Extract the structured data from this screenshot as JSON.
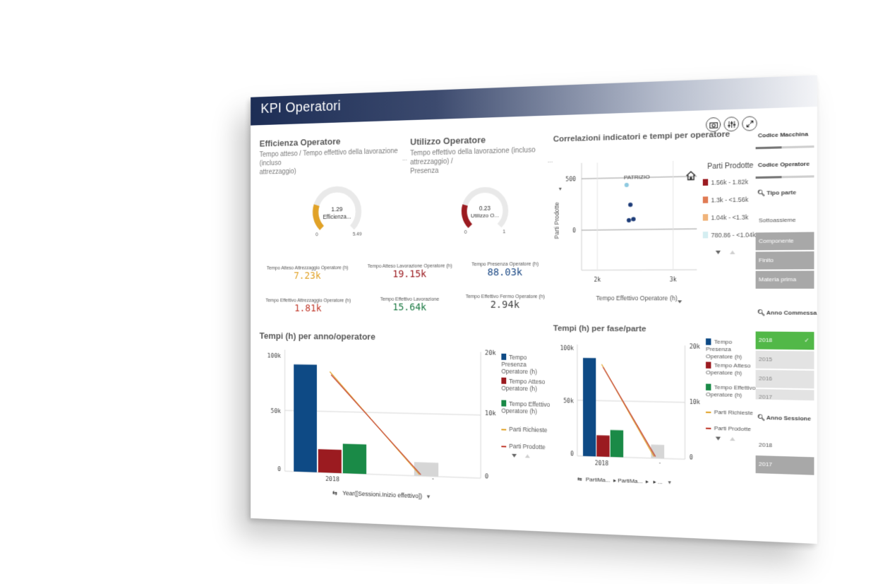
{
  "app": {
    "title": "KPI Operatori"
  },
  "toolbar": {
    "snapshot_icon": "camera-icon",
    "selections_icon": "sliders-icon",
    "fullscreen_icon": "expand-icon"
  },
  "efficienza": {
    "title": "Efficienza Operatore",
    "subtitle_line1": "Tempo atteso / Tempo effettivo della lavorazione (incluso",
    "subtitle_line2": "attrezzaggio)",
    "gauge": {
      "value_label": "1.29",
      "measure_label": "Efficienza...",
      "min_label": "0",
      "max_label": "5.49",
      "value": 1.29,
      "min": 0,
      "max": 5.49,
      "color": "#e1a227"
    }
  },
  "utilizzo": {
    "title": "Utilizzo Operatore",
    "subtitle_line1": "Tempo effettivo della lavorazione (incluso attrezzaggio) /",
    "subtitle_line2": "Presenza",
    "ellipsis": "...",
    "gauge": {
      "value_label": "0.23",
      "measure_label": "Utilizzo O...",
      "min_label": "0",
      "max_label": "1",
      "value": 0.23,
      "min": 0,
      "max": 1,
      "color": "#9b1b20"
    }
  },
  "kpis": [
    {
      "label": "Tempo Atteso Attrezzaggio Operatore (h)",
      "value": "7.23k",
      "color": "#e1a227"
    },
    {
      "label": "Tempo Atteso Lavorazione Operatore (h)",
      "value": "19.15k",
      "color": "#9b1b20"
    },
    {
      "label": "Tempo Presenza Operatore (h)",
      "value": "88.03k",
      "color": "#1d4a86"
    },
    {
      "label": "Tempo Effettivo Attrezzaggio Operatore (h)",
      "value": "1.81k",
      "color": "#c0392b"
    },
    {
      "label": "Tempo Effettivo Lavorazione",
      "value": "15.64k",
      "color": "#1e7b45"
    },
    {
      "label": "Tempo Effettivo Fermo Operatore (h)",
      "value": "2.94k",
      "color": "#444444"
    }
  ],
  "scatter": {
    "title": "Correlazioni indicatori e tempi per operatore",
    "ylabel": "Parti Prodotte",
    "xlabel": "Tempo Effettivo Operatore (h)",
    "point_label": "PATRIZIO",
    "home_icon": "home-icon",
    "y_ticks": [
      "500",
      "0"
    ],
    "x_ticks": [
      "2k",
      "3k"
    ],
    "legend_title": "Parti Prodotte",
    "legend": [
      {
        "label": "1.56k - 1.82k",
        "color": "#9b1b20"
      },
      {
        "label": "1.3k - <1.56k",
        "color": "#e07b54"
      },
      {
        "label": "1.04k - <1.3k",
        "color": "#f0b37a"
      },
      {
        "label": "780.86 - <1.04k",
        "color": "#d4eef1"
      }
    ]
  },
  "chart_anno": {
    "title": "Tempi (h) per anno/operatore",
    "y_left_ticks": [
      "100k",
      "50k",
      "0"
    ],
    "y_right_ticks": [
      "20k",
      "10k",
      "0"
    ],
    "x_ticks": [
      "2018",
      "-"
    ],
    "dimension_label": "Year([Sessioni.Inizio effettivo])",
    "legend": [
      {
        "label": "Tempo Presenza Operatore (h)",
        "color": "#0e4a85",
        "kind": "bar"
      },
      {
        "label": "Tempo Atteso Operatore (h)",
        "color": "#9b1b20",
        "kind": "bar"
      },
      {
        "label": "Tempo Effettivo Operatore (h)",
        "color": "#1a8a47",
        "kind": "bar"
      },
      {
        "label": "Parti Richieste",
        "color": "#e1a227",
        "kind": "line"
      },
      {
        "label": "Parti Prodotte",
        "color": "#c0392b",
        "kind": "line"
      }
    ]
  },
  "chart_fase": {
    "title": "Tempi (h) per fase/parte",
    "y_left_ticks": [
      "100k",
      "50k",
      "0"
    ],
    "y_right_ticks": [
      "20k",
      "10k",
      "0"
    ],
    "x_ticks": [
      "2018",
      "-"
    ],
    "breadcrumb": [
      "PartiMa...",
      "PartiMa...",
      "",
      "..."
    ],
    "legend": [
      {
        "label": "Tempo Presenza Operatore (h)",
        "color": "#0e4a85",
        "kind": "bar"
      },
      {
        "label": "Tempo Atteso Operatore (h)",
        "color": "#9b1b20",
        "kind": "bar"
      },
      {
        "label": "Tempo Effettivo Operatore (h)",
        "color": "#1a8a47",
        "kind": "bar"
      },
      {
        "label": "Parti Richieste",
        "color": "#e1a227",
        "kind": "line"
      },
      {
        "label": "Parti Prodotte",
        "color": "#c0392b",
        "kind": "line"
      }
    ]
  },
  "filters": {
    "codice_macchina": "Codice Macchina",
    "codice_operatore": "Codice Operatore",
    "tipo_parte": {
      "title": "Tipo parte",
      "items": [
        "Sottoassieme",
        "Componente",
        "Finito",
        "Materia prima"
      ]
    },
    "anno_commessa": {
      "title": "Anno Commessa",
      "items": [
        "2018",
        "2015",
        "2016",
        "2017"
      ],
      "check": "✓"
    },
    "anno_sessione": {
      "title": "Anno Sessione",
      "items": [
        "2018",
        "2017"
      ]
    }
  },
  "chart_data": [
    {
      "type": "bar",
      "title": "Tempi (h) per anno/operatore",
      "categories": [
        "2018",
        "-"
      ],
      "ylim": [
        0,
        100000
      ],
      "y2lim": [
        0,
        20000
      ],
      "series": [
        {
          "name": "Tempo Presenza Operatore (h)",
          "values": [
            88000,
            null
          ]
        },
        {
          "name": "Tempo Atteso Operatore (h)",
          "values": [
            19000,
            null
          ]
        },
        {
          "name": "Tempo Effettivo Operatore (h)",
          "values": [
            24000,
            11000
          ]
        },
        {
          "name": "Parti Richieste",
          "values": [
            16500,
            200
          ],
          "axis": "right"
        },
        {
          "name": "Parti Prodotte",
          "values": [
            16000,
            200
          ],
          "axis": "right"
        }
      ]
    },
    {
      "type": "bar",
      "title": "Tempi (h) per fase/parte",
      "categories": [
        "2018",
        "-"
      ],
      "ylim": [
        0,
        100000
      ],
      "y2lim": [
        0,
        20000
      ],
      "series": [
        {
          "name": "Tempo Presenza Operatore (h)",
          "values": [
            88000,
            null
          ]
        },
        {
          "name": "Tempo Atteso Operatore (h)",
          "values": [
            19000,
            null
          ]
        },
        {
          "name": "Tempo Effettivo Operatore (h)",
          "values": [
            24000,
            12000
          ]
        },
        {
          "name": "Parti Richieste",
          "values": [
            16500,
            300
          ],
          "axis": "right"
        },
        {
          "name": "Parti Prodotte",
          "values": [
            16000,
            300
          ],
          "axis": "right"
        }
      ]
    },
    {
      "type": "scatter",
      "title": "Correlazioni indicatori e tempi per operatore",
      "xlabel": "Tempo Effettivo Operatore (h)",
      "ylabel": "Parti Prodotte",
      "xlim": [
        1800,
        3100
      ],
      "ylim": [
        -200,
        600
      ],
      "points": [
        {
          "x": 2390,
          "y": 430,
          "label": "PATRIZIO",
          "color": "#8ec9e0"
        },
        {
          "x": 2440,
          "y": 240,
          "color": "#1d3c78"
        },
        {
          "x": 2420,
          "y": 90,
          "color": "#1d3c78"
        },
        {
          "x": 2480,
          "y": 100,
          "color": "#1d3c78"
        }
      ]
    }
  ]
}
